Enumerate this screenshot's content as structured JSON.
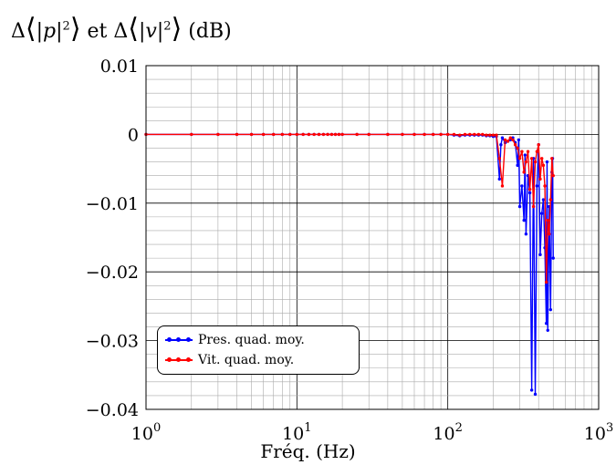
{
  "header": {
    "title": "Δ⟨|p|²⟩ et Δ⟨|v|²⟩ (dB)"
  },
  "chart_data": {
    "type": "line",
    "title": "Δ⟨|p|²⟩ et Δ⟨|v|²⟩ (dB)",
    "xlabel": "Fréq. (Hz)",
    "ylabel": "",
    "xscale": "log",
    "xlim": [
      1,
      1000
    ],
    "ylim": [
      -0.04,
      0.01
    ],
    "x_ticks": [
      {
        "value": 1,
        "base": "10",
        "exp": "0"
      },
      {
        "value": 10,
        "base": "10",
        "exp": "1"
      },
      {
        "value": 100,
        "base": "10",
        "exp": "2"
      },
      {
        "value": 1000,
        "base": "10",
        "exp": "3"
      }
    ],
    "y_ticks": [
      {
        "value": 0.01,
        "label": "0.01"
      },
      {
        "value": 0,
        "label": "0"
      },
      {
        "value": -0.01,
        "label": "−0.01"
      },
      {
        "value": -0.02,
        "label": "−0.02"
      },
      {
        "value": -0.03,
        "label": "−0.03"
      },
      {
        "value": -0.04,
        "label": "−0.04"
      }
    ],
    "grid": true,
    "legend_position": "bottom-left",
    "series": [
      {
        "name": "Pres. quad. moy.",
        "color": "#0000ff",
        "points": [
          [
            1,
            0
          ],
          [
            2,
            0
          ],
          [
            3,
            0
          ],
          [
            4,
            0
          ],
          [
            5,
            0
          ],
          [
            6,
            0
          ],
          [
            7,
            0
          ],
          [
            8,
            0
          ],
          [
            9,
            0
          ],
          [
            10,
            0
          ],
          [
            11,
            0
          ],
          [
            12,
            0
          ],
          [
            13,
            0
          ],
          [
            14,
            0
          ],
          [
            15,
            0
          ],
          [
            16,
            0
          ],
          [
            17,
            0
          ],
          [
            18,
            0
          ],
          [
            19,
            0
          ],
          [
            20,
            0
          ],
          [
            25,
            0
          ],
          [
            30,
            0
          ],
          [
            40,
            0
          ],
          [
            50,
            0
          ],
          [
            60,
            0
          ],
          [
            70,
            0
          ],
          [
            80,
            0
          ],
          [
            90,
            0
          ],
          [
            100,
            0
          ],
          [
            110,
            -0.0001
          ],
          [
            120,
            -0.0002
          ],
          [
            130,
            -0.0001
          ],
          [
            140,
            -0.0001
          ],
          [
            150,
            -0.0001
          ],
          [
            160,
            -0.0001
          ],
          [
            170,
            -0.0001
          ],
          [
            180,
            -0.0002
          ],
          [
            190,
            -0.0002
          ],
          [
            200,
            -0.0003
          ],
          [
            210,
            -0.0003
          ],
          [
            220,
            -0.0065
          ],
          [
            225,
            -0.0015
          ],
          [
            230,
            -0.0005
          ],
          [
            240,
            -0.0012
          ],
          [
            250,
            -0.001
          ],
          [
            260,
            -0.0008
          ],
          [
            270,
            -0.0005
          ],
          [
            280,
            -0.0012
          ],
          [
            290,
            -0.0045
          ],
          [
            295,
            -0.0008
          ],
          [
            300,
            -0.0105
          ],
          [
            310,
            -0.0075
          ],
          [
            320,
            -0.0125
          ],
          [
            325,
            -0.003
          ],
          [
            330,
            -0.0145
          ],
          [
            340,
            -0.006
          ],
          [
            350,
            -0.0085
          ],
          [
            360,
            -0.0372
          ],
          [
            370,
            -0.0035
          ],
          [
            380,
            -0.0378
          ],
          [
            390,
            -0.0075
          ],
          [
            400,
            -0.0015
          ],
          [
            410,
            -0.0175
          ],
          [
            420,
            -0.0115
          ],
          [
            430,
            -0.0095
          ],
          [
            440,
            -0.0165
          ],
          [
            450,
            -0.0275
          ],
          [
            455,
            -0.004
          ],
          [
            460,
            -0.0285
          ],
          [
            470,
            -0.0105
          ],
          [
            480,
            -0.0255
          ],
          [
            490,
            -0.0055
          ],
          [
            495,
            -0.0035
          ],
          [
            500,
            -0.018
          ]
        ]
      },
      {
        "name": "Vit. quad. moy.",
        "color": "#ff0000",
        "points": [
          [
            1,
            0
          ],
          [
            2,
            0
          ],
          [
            3,
            0
          ],
          [
            4,
            0
          ],
          [
            5,
            0
          ],
          [
            6,
            0
          ],
          [
            7,
            0
          ],
          [
            8,
            0
          ],
          [
            9,
            0
          ],
          [
            10,
            0
          ],
          [
            11,
            0
          ],
          [
            12,
            0
          ],
          [
            13,
            0
          ],
          [
            14,
            0
          ],
          [
            15,
            0
          ],
          [
            16,
            0
          ],
          [
            17,
            0
          ],
          [
            18,
            0
          ],
          [
            19,
            0
          ],
          [
            20,
            0
          ],
          [
            25,
            0
          ],
          [
            30,
            0
          ],
          [
            40,
            0
          ],
          [
            50,
            0
          ],
          [
            60,
            0
          ],
          [
            70,
            0
          ],
          [
            80,
            0
          ],
          [
            90,
            0
          ],
          [
            100,
            0
          ],
          [
            110,
            0
          ],
          [
            120,
            -0.0001
          ],
          [
            130,
            0
          ],
          [
            140,
            0
          ],
          [
            150,
            0
          ],
          [
            160,
            0
          ],
          [
            170,
            0
          ],
          [
            180,
            -0.0001
          ],
          [
            190,
            -0.0001
          ],
          [
            200,
            -0.0001
          ],
          [
            210,
            -0.0001
          ],
          [
            220,
            -0.0035
          ],
          [
            230,
            -0.0075
          ],
          [
            240,
            -0.0008
          ],
          [
            250,
            -0.001
          ],
          [
            260,
            -0.0005
          ],
          [
            270,
            -0.0008
          ],
          [
            280,
            -0.0015
          ],
          [
            290,
            -0.002
          ],
          [
            300,
            -0.0035
          ],
          [
            310,
            -0.0025
          ],
          [
            320,
            -0.0055
          ],
          [
            330,
            -0.004
          ],
          [
            340,
            -0.0025
          ],
          [
            350,
            -0.008
          ],
          [
            360,
            -0.0035
          ],
          [
            370,
            -0.0105
          ],
          [
            380,
            -0.004
          ],
          [
            390,
            -0.0025
          ],
          [
            400,
            -0.0015
          ],
          [
            410,
            -0.0065
          ],
          [
            420,
            -0.0035
          ],
          [
            430,
            -0.0045
          ],
          [
            440,
            -0.0075
          ],
          [
            450,
            -0.0215
          ],
          [
            460,
            -0.0125
          ],
          [
            470,
            -0.0145
          ],
          [
            480,
            -0.0095
          ],
          [
            490,
            -0.0035
          ],
          [
            500,
            -0.006
          ]
        ]
      }
    ]
  }
}
